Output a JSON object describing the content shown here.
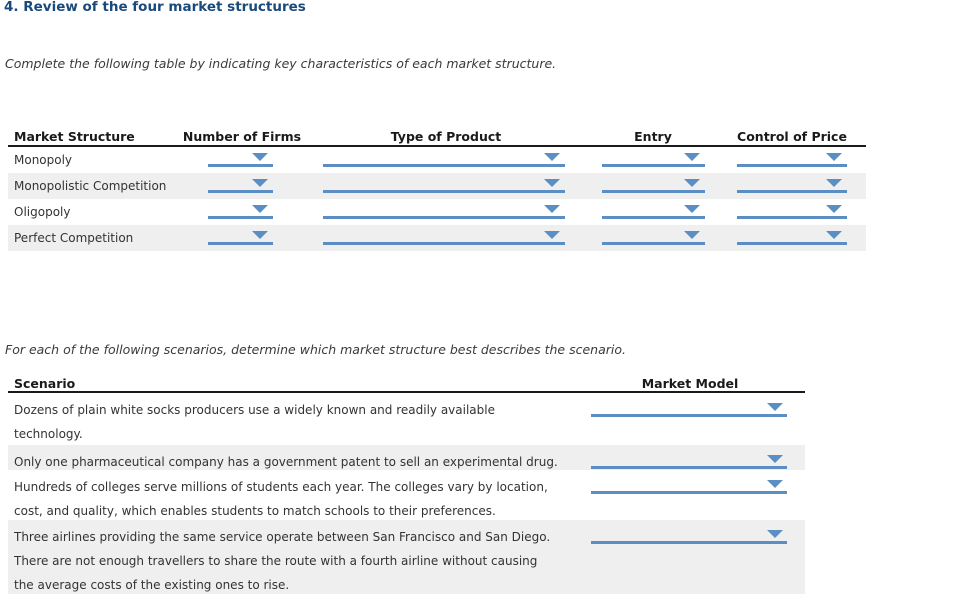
{
  "title": "4. Review of the four market structures",
  "instructions": {
    "characteristics": "Complete the following table by indicating key characteristics of each market structure.",
    "scenarios": "For each of the following scenarios, determine which market structure best describes the scenario."
  },
  "characteristics_table": {
    "headers": [
      "Market Structure",
      "Number of Firms",
      "Type of Product",
      "Entry",
      "Control of Price"
    ],
    "rows": [
      {
        "label": "Monopoly",
        "number_of_firms": "",
        "type_of_product": "",
        "entry": "",
        "control_of_price": ""
      },
      {
        "label": "Monopolistic Competition",
        "number_of_firms": "",
        "type_of_product": "",
        "entry": "",
        "control_of_price": ""
      },
      {
        "label": "Oligopoly",
        "number_of_firms": "",
        "type_of_product": "",
        "entry": "",
        "control_of_price": ""
      },
      {
        "label": "Perfect Competition",
        "number_of_firms": "",
        "type_of_product": "",
        "entry": "",
        "control_of_price": ""
      }
    ]
  },
  "scenario_table": {
    "headers": [
      "Scenario",
      "Market Model"
    ],
    "rows": [
      {
        "lines": [
          "Dozens of plain white socks producers use a widely known and readily available",
          "technology."
        ],
        "market_model": ""
      },
      {
        "lines": [
          "Only one pharmaceutical company has a government patent to sell an experimental drug."
        ],
        "market_model": ""
      },
      {
        "lines": [
          "Hundreds of colleges serve millions of students each year. The colleges vary by location,",
          "cost, and quality, which enables students to match schools to their preferences."
        ],
        "market_model": ""
      },
      {
        "lines": [
          "Three airlines providing the same service operate between San Francisco and San Diego.",
          "There are not enough travellers to share the route with a fourth airline without causing",
          "the average costs of the existing ones to rise."
        ],
        "market_model": ""
      }
    ]
  },
  "colors": {
    "title_blue": "#1a4a7c",
    "dropdown_blue": "#5b8fc3",
    "row_stripe_gray": "#efefef",
    "header_rule_black": "#1a1a1a"
  }
}
